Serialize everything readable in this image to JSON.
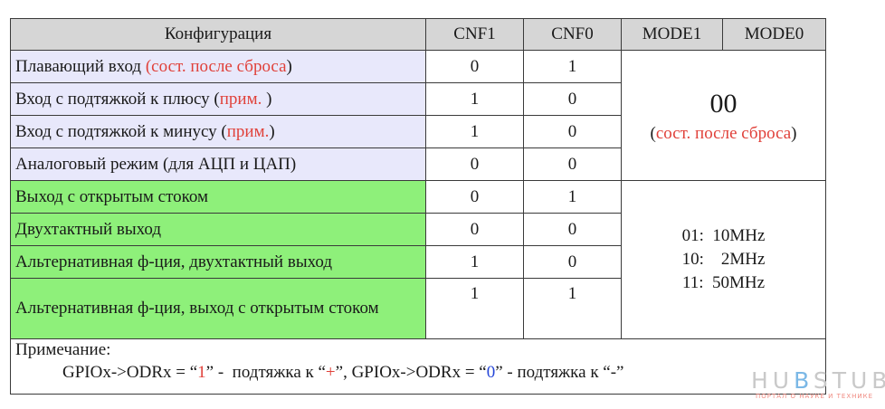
{
  "header": {
    "config": "Конфигурация",
    "cnf1": "CNF1",
    "cnf0": "CNF0",
    "mode1": "MODE1",
    "mode0": "MODE0"
  },
  "input_rows": [
    {
      "label": "Плавающий вход  ",
      "paren_open": "(",
      "note": "сост. после сброса",
      "paren_close": ")",
      "suffix": "",
      "cnf1": "0",
      "cnf0": "1"
    },
    {
      "label": "Вход с подтяжкой к плюсу ",
      "paren_open": "(",
      "note": "прим.",
      "paren_close": " )",
      "suffix": "",
      "cnf1": "1",
      "cnf0": "0"
    },
    {
      "label": "Вход с подтяжкой к минусу ",
      "paren_open": "(",
      "note": "прим.",
      "paren_close": ")",
      "suffix": "",
      "cnf1": "1",
      "cnf0": "0"
    },
    {
      "label": "Аналоговый режим (для АЦП и ЦАП)",
      "paren_open": "",
      "note": "",
      "paren_close": "",
      "suffix": "",
      "cnf1": "0",
      "cnf0": "0"
    }
  ],
  "input_mode": {
    "value": "00",
    "paren_open": "(",
    "note": "сост. после сброса",
    "paren_close": ")"
  },
  "output_rows": [
    {
      "label": "Выход с открытым стоком",
      "cnf1": "0",
      "cnf0": "1"
    },
    {
      "label": "Двухтактный выход",
      "cnf1": "0",
      "cnf0": "0"
    },
    {
      "label": "Альтернативная ф-ция, двухтактный выход",
      "cnf1": "1",
      "cnf0": "0"
    },
    {
      "label": "Альтернативная ф-ция, выход с открытым стоком",
      "cnf1": "1",
      "cnf0": "1"
    }
  ],
  "output_mode": [
    "01:  10MHz",
    "10:    2MHz",
    "11:  50MHz"
  ],
  "note": {
    "title": "Примечание:",
    "p1": "GPIOx->ODRx = “",
    "v1": "1",
    "p2": "” -  подтяжка к “",
    "v2": "+",
    "p3": "”, GPIOx->ODRx = “",
    "v3": "0",
    "p4": "” - подтяжка к “-”"
  },
  "logo": {
    "pre": "HU",
    "b": "B",
    "post": "STUB",
    "subtitle": "ПОРТАЛ О НАУКЕ И ТЕХНИКЕ"
  },
  "colors": {
    "accent_red": "#e0413a",
    "accent_blue": "#2546d8",
    "input_bg": "#e8e8fb",
    "output_bg": "#8ef07a",
    "header_bg": "#d6d6d6"
  }
}
